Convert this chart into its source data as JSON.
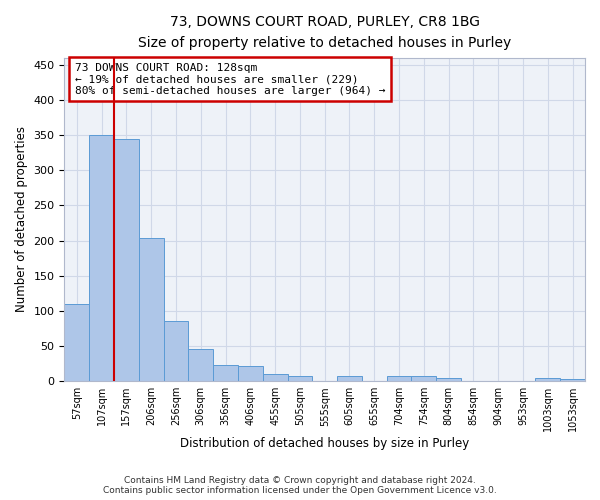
{
  "title_line1": "73, DOWNS COURT ROAD, PURLEY, CR8 1BG",
  "title_line2": "Size of property relative to detached houses in Purley",
  "xlabel": "Distribution of detached houses by size in Purley",
  "ylabel": "Number of detached properties",
  "categories": [
    "57sqm",
    "107sqm",
    "157sqm",
    "206sqm",
    "256sqm",
    "306sqm",
    "356sqm",
    "406sqm",
    "455sqm",
    "505sqm",
    "555sqm",
    "605sqm",
    "655sqm",
    "704sqm",
    "754sqm",
    "804sqm",
    "854sqm",
    "904sqm",
    "953sqm",
    "1003sqm",
    "1053sqm"
  ],
  "values": [
    110,
    350,
    345,
    203,
    85,
    46,
    23,
    21,
    10,
    7,
    0,
    7,
    0,
    7,
    7,
    4,
    0,
    0,
    0,
    4,
    3
  ],
  "bar_color": "#aec6e8",
  "bar_edge_color": "#5b9bd5",
  "grid_color": "#d0d8e8",
  "background_color": "#eef2f8",
  "vline_x": 1.5,
  "vline_color": "#cc0000",
  "annotation_text": "73 DOWNS COURT ROAD: 128sqm\n← 19% of detached houses are smaller (229)\n80% of semi-detached houses are larger (964) →",
  "annotation_box_color": "#ffffff",
  "annotation_border_color": "#cc0000",
  "ylim": [
    0,
    460
  ],
  "yticks": [
    0,
    50,
    100,
    150,
    200,
    250,
    300,
    350,
    400,
    450
  ],
  "footer_line1": "Contains HM Land Registry data © Crown copyright and database right 2024.",
  "footer_line2": "Contains public sector information licensed under the Open Government Licence v3.0."
}
